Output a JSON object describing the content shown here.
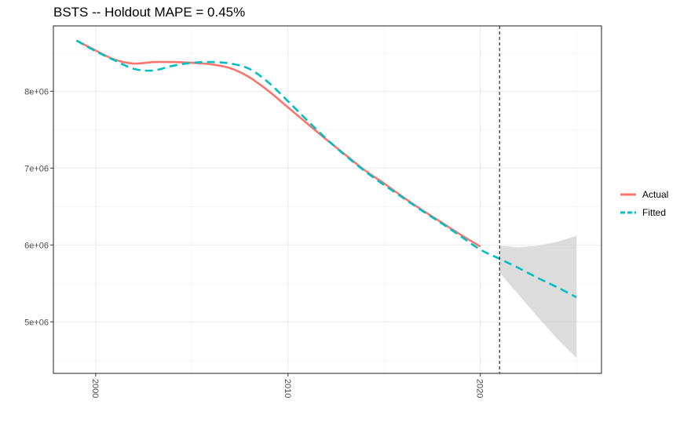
{
  "chart_data": {
    "type": "line",
    "title": "BSTS -- Holdout MAPE = 0.45%",
    "xlabel": "",
    "ylabel": "",
    "xlim": [
      1997.8,
      2026.3
    ],
    "ylim": [
      4330000,
      8850000
    ],
    "x_ticks": [
      2000,
      2010,
      2020
    ],
    "x_tick_labels": [
      "2000",
      "2010",
      "2020"
    ],
    "y_ticks": [
      5000000,
      6000000,
      7000000,
      8000000
    ],
    "y_tick_labels": [
      "5e+06",
      "6e+06",
      "7e+06",
      "8e+06"
    ],
    "grid": true,
    "legend_position": "right",
    "forecast_start": 2021,
    "series": [
      {
        "name": "Actual",
        "color": "#f8766d",
        "style": "solid",
        "x": [
          1999,
          2000,
          2001,
          2002,
          2003,
          2004,
          2005,
          2006,
          2007,
          2008,
          2009,
          2010,
          2011,
          2012,
          2013,
          2014,
          2015,
          2016,
          2017,
          2018,
          2019,
          2020
        ],
        "values": [
          8660000,
          8530000,
          8410000,
          8360000,
          8380000,
          8380000,
          8370000,
          8350000,
          8300000,
          8180000,
          8000000,
          7790000,
          7580000,
          7370000,
          7170000,
          6970000,
          6800000,
          6620000,
          6450000,
          6290000,
          6130000,
          5980000
        ]
      },
      {
        "name": "Fitted",
        "color": "#00bfc4",
        "style": "dashed",
        "x": [
          1999,
          2000,
          2001,
          2002,
          2003,
          2004,
          2005,
          2006,
          2007,
          2008,
          2009,
          2010,
          2011,
          2012,
          2013,
          2014,
          2015,
          2016,
          2017,
          2018,
          2019,
          2020,
          2021,
          2022,
          2023,
          2024,
          2025
        ],
        "values": [
          8660000,
          8520000,
          8400000,
          8290000,
          8270000,
          8330000,
          8370000,
          8380000,
          8360000,
          8290000,
          8110000,
          7870000,
          7620000,
          7380000,
          7160000,
          6960000,
          6780000,
          6610000,
          6440000,
          6280000,
          6110000,
          5940000,
          5820000,
          5700000,
          5570000,
          5450000,
          5320000
        ]
      }
    ],
    "interval": {
      "x": [
        2021,
        2022,
        2023,
        2024,
        2025
      ],
      "lower": [
        5640000,
        5350000,
        5060000,
        4780000,
        4530000
      ],
      "upper": [
        5990000,
        5970000,
        5990000,
        6040000,
        6120000
      ],
      "color": "#d3d3d3"
    }
  }
}
